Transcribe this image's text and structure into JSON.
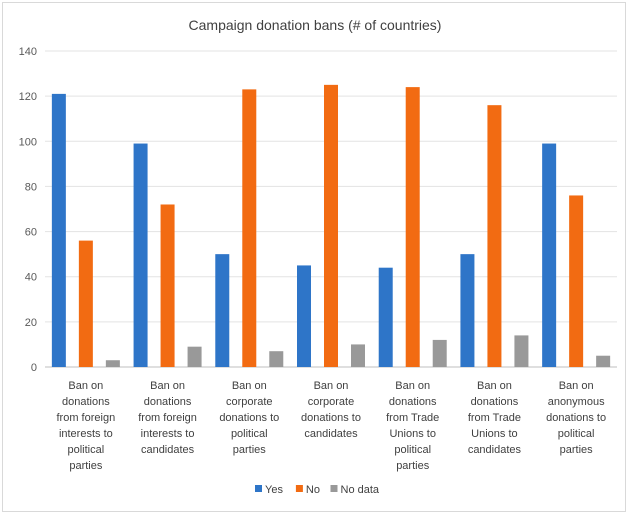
{
  "chart_data": {
    "type": "bar",
    "title": "Campaign donation  bans (# of countries)",
    "categories": [
      [
        "Ban on",
        "donations",
        "from foreign",
        "interests to",
        "political",
        "parties"
      ],
      [
        "Ban on",
        "donations",
        "from foreign",
        "interests to",
        "candidates"
      ],
      [
        "Ban on",
        "corporate",
        "donations to",
        "political",
        "parties"
      ],
      [
        "Ban on",
        "corporate",
        "donations to",
        "candidates"
      ],
      [
        "Ban on",
        "donations",
        "from Trade",
        "Unions to",
        "political",
        "parties"
      ],
      [
        "Ban on",
        "donations",
        "from Trade",
        "Unions to",
        "candidates"
      ],
      [
        "Ban on",
        "anonymous",
        "donations to",
        "political",
        "parties"
      ]
    ],
    "series": [
      {
        "name": "Yes",
        "color": "#2e75c8",
        "values": [
          121,
          99,
          50,
          45,
          44,
          50,
          99
        ]
      },
      {
        "name": "No",
        "color": "#f26b12",
        "values": [
          56,
          72,
          123,
          125,
          124,
          116,
          76
        ]
      },
      {
        "name": "No data",
        "color": "#999999",
        "values": [
          3,
          9,
          7,
          10,
          12,
          14,
          5
        ]
      }
    ],
    "ylim": [
      0,
      140
    ],
    "yticks": [
      0,
      20,
      40,
      60,
      80,
      100,
      120,
      140
    ],
    "grid": true,
    "legend": "bottom"
  }
}
